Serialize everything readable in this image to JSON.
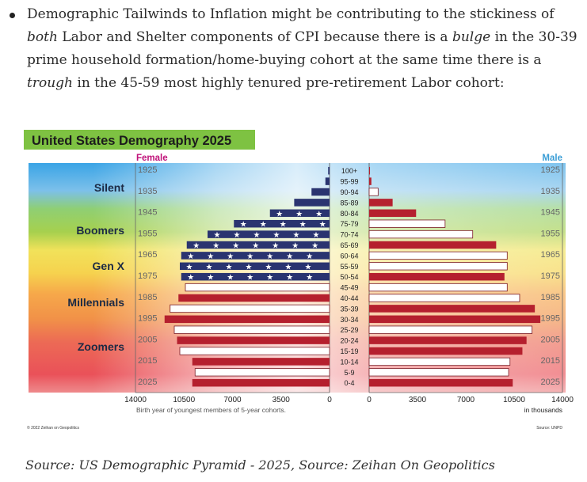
{
  "article": {
    "bullet_segments": [
      {
        "t": "Demographic Tailwinds to Inflation might be contributing to the stickiness of ",
        "i": false
      },
      {
        "t": "both",
        "i": true
      },
      {
        "t": " Labor and Shelter components of CPI because there is a ",
        "i": false
      },
      {
        "t": "bulge",
        "i": true
      },
      {
        "t": " in the 30-39 prime household formation/home-buying cohort at the same time there is a ",
        "i": false
      },
      {
        "t": "trough",
        "i": true
      },
      {
        "t": " in the 45-59 most highly tenured pre-retirement Labor cohort:",
        "i": false
      }
    ],
    "source_caption": "Source: US Demographic Pyramid - 2025, Source: Zeihan On Geopolitics"
  },
  "chart_data": {
    "type": "bar",
    "title": "United States Demography 2025",
    "female_label": "Female",
    "male_label": "Male",
    "age_groups": [
      "100+",
      "95-99",
      "90-94",
      "85-89",
      "80-84",
      "75-79",
      "70-74",
      "65-69",
      "60-64",
      "55-59",
      "50-54",
      "45-49",
      "40-44",
      "35-39",
      "30-34",
      "25-29",
      "20-24",
      "15-19",
      "10-14",
      "5-9",
      "0-4"
    ],
    "female_values": [
      100,
      300,
      1300,
      2550,
      4300,
      6900,
      8800,
      10300,
      10700,
      10800,
      10700,
      10400,
      10900,
      11500,
      11900,
      11200,
      11000,
      10800,
      9900,
      9700,
      9900
    ],
    "male_values": [
      60,
      160,
      650,
      1700,
      3400,
      5500,
      7500,
      9200,
      10000,
      10000,
      9800,
      10000,
      10900,
      12000,
      12400,
      11800,
      11400,
      11100,
      10200,
      10100,
      10400
    ],
    "male_fill": [
      "red",
      "red",
      "white",
      "red",
      "red",
      "white",
      "white",
      "red",
      "white",
      "white",
      "red",
      "white",
      "white",
      "red",
      "red",
      "white",
      "red",
      "red",
      "white",
      "white",
      "red"
    ],
    "birth_years_left": [
      "1925",
      "1935",
      "1945",
      "1955",
      "1965",
      "1975",
      "1985",
      "1995",
      "2005",
      "2015",
      "2025"
    ],
    "birth_years_right": [
      "1925",
      "1935",
      "1945",
      "1955",
      "1965",
      "1975",
      "1985",
      "1995",
      "2005",
      "2015",
      "2025"
    ],
    "generations": [
      "Silent",
      "Boomers",
      "Gen X",
      "Millennials",
      "Zoomers"
    ],
    "x_ticks_left": [
      "14000",
      "10500",
      "7000",
      "3500",
      "0"
    ],
    "x_ticks_right": [
      "0",
      "3500",
      "7000",
      "10500",
      "14000"
    ],
    "xlim": [
      0,
      14000
    ],
    "x_caption": "Birth year of youngest members of 5-year cohorts.",
    "x_units": "in thousands",
    "copyright": "© 2022 Zeihan on Geopolitics",
    "source": "Source: UNPD",
    "colors": {
      "navy": "#2a3470",
      "red": "#b5202e",
      "title_bg": "#7ec242",
      "female": "#c0127a",
      "male": "#3b9ed6"
    }
  }
}
